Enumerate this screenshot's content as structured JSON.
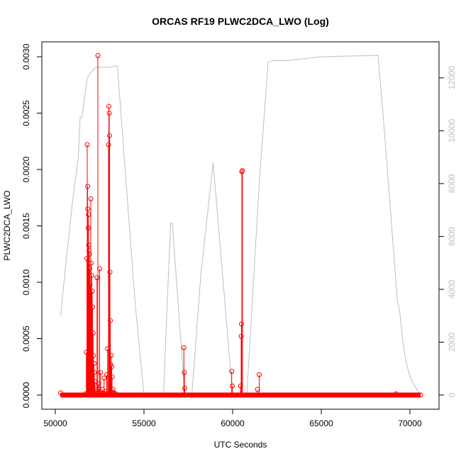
{
  "chart_data": {
    "type": "scatter",
    "title": "ORCAS RF19 PLWC2DCA_LWO (Log)",
    "xlabel": "UTC Seconds",
    "ylabel": "PLWC2DCA_LWO",
    "y2label": "",
    "xlim": [
      50000,
      70800
    ],
    "ylim": [
      0,
      0.003
    ],
    "y2lim": [
      0,
      12800
    ],
    "x_ticks": [
      50000,
      55000,
      60000,
      65000,
      70000
    ],
    "x_tick_labels": [
      "50000",
      "55000",
      "60000",
      "65000",
      "70000"
    ],
    "y_ticks": [
      0.0,
      0.0005,
      0.001,
      0.0015,
      0.002,
      0.0025,
      0.003
    ],
    "y_tick_labels": [
      "0.0000",
      "0.0005",
      "0.0010",
      "0.0015",
      "0.0020",
      "0.0025",
      "0.0030"
    ],
    "y2_ticks": [
      0,
      2000,
      4000,
      6000,
      8000,
      10000,
      12000
    ],
    "y2_tick_labels": [
      "0",
      "2000",
      "4000",
      "6000",
      "8000",
      "10000",
      "12000"
    ],
    "grid": false,
    "colors": {
      "lwc": "#ff0000",
      "altitude": "#bebebe",
      "axes": "#000000"
    },
    "series": [
      {
        "name": "",
        "style": "points-and-lines",
        "axis": "left",
        "x": [
          50300,
          50400,
          51700,
          51750,
          51780,
          51800,
          51820,
          51830,
          51850,
          51870,
          51880,
          51900,
          51920,
          51940,
          51960,
          51980,
          52000,
          52020,
          52050,
          52080,
          52100,
          52130,
          52150,
          52180,
          52200,
          52230,
          52250,
          52280,
          52300,
          52350,
          52400,
          52430,
          52450,
          52480,
          52500,
          52550,
          52600,
          52650,
          52700,
          52750,
          52800,
          52850,
          52900,
          52950,
          53000,
          53020,
          53040,
          53060,
          53080,
          53100,
          53120,
          53150,
          53180,
          53200,
          53250,
          53300,
          53350,
          53400,
          53500,
          57250,
          57280,
          57300,
          59950,
          59980,
          60450,
          60480,
          60500,
          60520,
          60550,
          61400,
          61500,
          69200,
          70600
        ],
        "y": [
          2e-05,
          0.0,
          1e-05,
          0.00038,
          0.00121,
          0.00222,
          0.00185,
          0.00165,
          0.00148,
          0.0016,
          0.00133,
          0.00128,
          0.00125,
          0.00112,
          0.00098,
          0.00074,
          0.00174,
          0.00117,
          0.00106,
          0.00092,
          0.00078,
          0.00055,
          0.00035,
          0.00028,
          0.0002,
          0.00012,
          5e-05,
          3e-05,
          1e-05,
          0.00104,
          0.00301,
          0.0001,
          5e-05,
          2e-05,
          0.00112,
          0.0002,
          1e-05,
          5e-05,
          2e-05,
          0.00015,
          1e-05,
          3e-05,
          0.00018,
          0.00041,
          0.00222,
          0.00256,
          0.0025,
          0.0023,
          0.00109,
          0.00066,
          0.00027,
          0.00035,
          0.00025,
          0.00016,
          5e-05,
          2e-05,
          1e-05,
          1e-05,
          0.0,
          0.00042,
          0.0002,
          6e-05,
          0.00021,
          8e-05,
          8e-05,
          0.00052,
          0.00063,
          0.00198,
          0.00199,
          5e-05,
          0.00018,
          1e-05,
          0.0
        ]
      },
      {
        "name": "",
        "style": "line",
        "axis": "right",
        "x": [
          50300,
          50600,
          51000,
          51300,
          51400,
          51500,
          51600,
          51700,
          51800,
          52000,
          52200,
          52300,
          52500,
          53000,
          53500,
          54500,
          55000,
          55500,
          56100,
          56500,
          56600,
          57300,
          57700,
          58200,
          58900,
          59500,
          60000,
          60500,
          60800,
          61500,
          62000,
          62200,
          63000,
          65000,
          68200,
          68500,
          69300,
          69400,
          69600,
          69800,
          70000,
          70300,
          70600
        ],
        "y": [
          3000,
          5000,
          7500,
          9000,
          10500,
          10500,
          11000,
          11500,
          12000,
          12200,
          12350,
          12400,
          12400,
          12400,
          12450,
          3500,
          0,
          0,
          0,
          6500,
          6500,
          0,
          0,
          4500,
          8800,
          4000,
          0,
          0,
          0,
          8000,
          12600,
          12650,
          12650,
          12800,
          12850,
          10500,
          3500,
          3300,
          2000,
          1200,
          700,
          300,
          0
        ]
      }
    ]
  }
}
